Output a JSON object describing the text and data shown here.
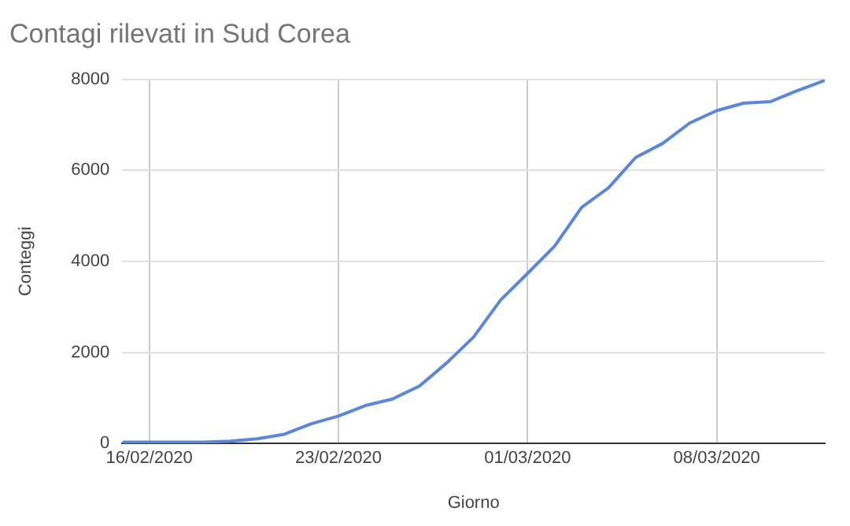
{
  "chart_data": {
    "type": "line",
    "title": "Contagi rilevati in Sud Corea",
    "xlabel": "Giorno",
    "ylabel": "Conteggi",
    "x": [
      "2020-02-15",
      "2020-02-16",
      "2020-02-17",
      "2020-02-18",
      "2020-02-19",
      "2020-02-20",
      "2020-02-21",
      "2020-02-22",
      "2020-02-23",
      "2020-02-24",
      "2020-02-25",
      "2020-02-26",
      "2020-02-27",
      "2020-02-28",
      "2020-02-29",
      "2020-03-01",
      "2020-03-02",
      "2020-03-03",
      "2020-03-04",
      "2020-03-05",
      "2020-03-06",
      "2020-03-07",
      "2020-03-08",
      "2020-03-09",
      "2020-03-10",
      "2020-03-11",
      "2020-03-12"
    ],
    "series": [
      {
        "color": "#5a86e0",
        "values": [
          28,
          29,
          30,
          31,
          51,
          104,
          204,
          433,
          602,
          833,
          977,
          1261,
          1766,
          2337,
          3150,
          3736,
          4335,
          5186,
          5621,
          6284,
          6593,
          7041,
          7313,
          7478,
          7513,
          7755,
          7979
        ]
      }
    ],
    "xlim": [
      "2020-02-15",
      "2020-03-12"
    ],
    "xticks": [
      {
        "value": "2020-02-16",
        "label": "16/02/2020"
      },
      {
        "value": "2020-02-23",
        "label": "23/02/2020"
      },
      {
        "value": "2020-03-01",
        "label": "01/03/2020"
      },
      {
        "value": "2020-03-08",
        "label": "08/03/2020"
      }
    ],
    "ylim": [
      0,
      8000
    ],
    "yticks": [
      0,
      2000,
      4000,
      6000,
      8000
    ],
    "grid": true,
    "legend": false,
    "marker": "none",
    "line_style": "solid"
  }
}
